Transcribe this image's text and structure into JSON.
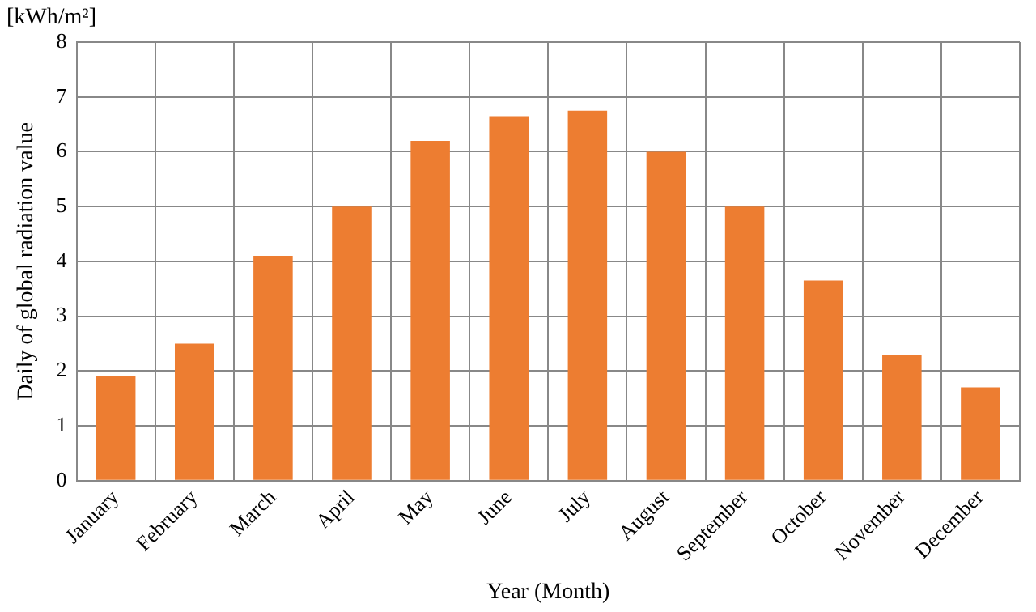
{
  "chart_data": {
    "type": "bar",
    "categories": [
      "January",
      "February",
      "March",
      "April",
      "May",
      "June",
      "July",
      "August",
      "September",
      "October",
      "November",
      "December"
    ],
    "values": [
      1.9,
      2.5,
      4.1,
      5.0,
      6.2,
      6.65,
      6.75,
      6.0,
      5.0,
      3.65,
      2.3,
      1.7
    ],
    "color": "#ed7d31",
    "xlabel": "Year (Month)",
    "ylabel": "Daily of global radiation value",
    "annotations": [
      "[kWh/m²]"
    ],
    "ylim": [
      0,
      8
    ],
    "yticks": [
      0,
      1,
      2,
      3,
      4,
      5,
      6,
      7,
      8
    ],
    "grid": true,
    "legend": false
  }
}
